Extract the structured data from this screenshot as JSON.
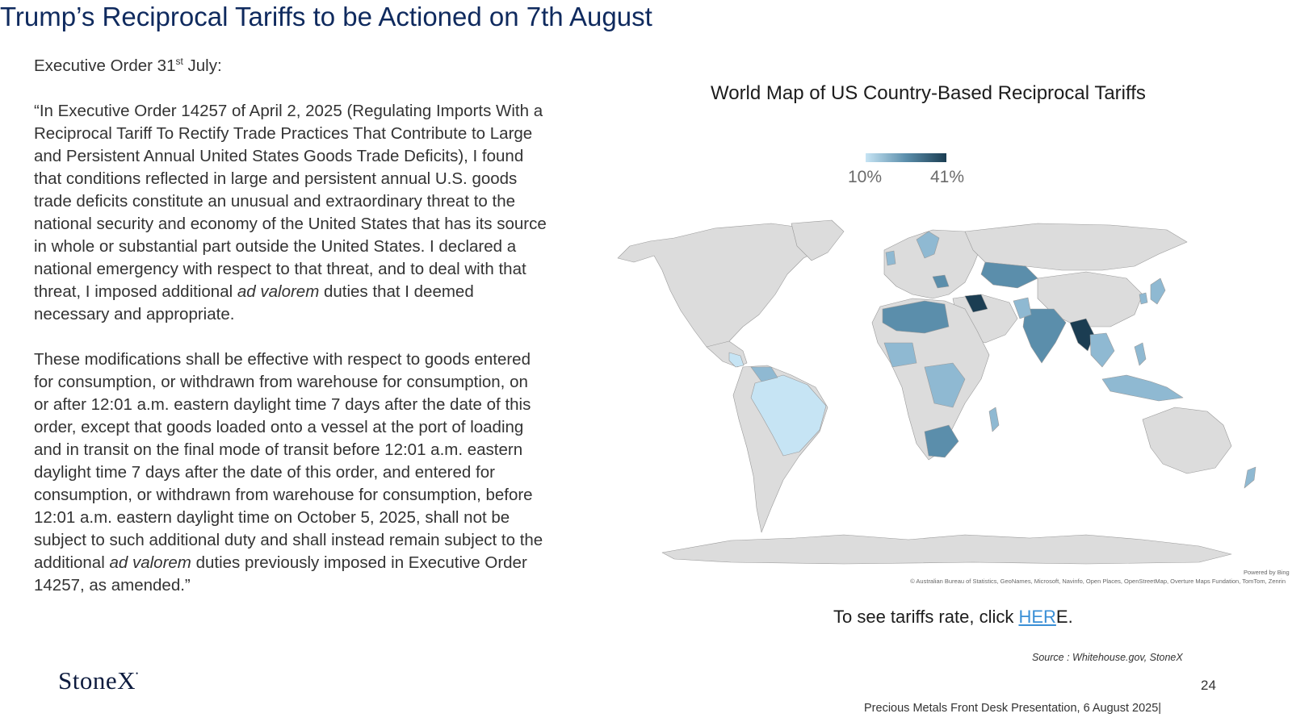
{
  "slide": {
    "title": "Trump’s Reciprocal Tariffs to be Actioned on 7th August",
    "page_number": "24",
    "footer": "Precious Metals Front Desk Presentation, 6 August 2025|",
    "logo_text": "StoneX"
  },
  "left": {
    "heading_prefix": "Executive Order 31",
    "heading_sup": "st",
    "heading_suffix": " July:",
    "para1_a": "“In Executive Order 14257 of April 2, 2025 (Regulating Imports With a Reciprocal Tariff To Rectify Trade Practices That Contribute to Large and Persistent Annual United States Goods Trade Deficits), I found that conditions reflected in large and persistent annual U.S. goods trade deficits constitute an unusual and extraordinary threat to the national security and economy of the United States that has its source in whole or substantial part outside the United States.  I declared a national emergency with respect to that threat, and to deal with that threat, I imposed additional ",
    "para1_italic": "ad valorem",
    "para1_b": " duties that I deemed necessary and appropriate.",
    "para2_a": "These modifications shall be effective with respect to goods entered for consumption, or withdrawn from warehouse for consumption, on or after 12:01 a.m. eastern daylight time 7 days after the date of this order, except that goods loaded onto a vessel at the port of loading and in transit on the final mode of transit before 12:01 a.m. eastern daylight time 7 days after the date of this order, and entered for consumption, or withdrawn from warehouse for consumption, before 12:01 a.m. eastern daylight time on October 5, 2025, shall not be subject to such additional duty and shall instead remain subject to the additional ",
    "para2_italic": "ad valorem",
    "para2_b": " duties previously imposed in Executive Order 14257, as amended.”"
  },
  "map": {
    "title": "World Map of US Country-Based Reciprocal Tariffs",
    "legend_min": "10%",
    "legend_max": "41%",
    "powered_by": "Powered by Bing",
    "attribution": "© Australian Bureau of Statistics, GeoNames, Microsoft, Navinfo, Open Places, OpenStreetMap, Overture Maps Fundation, TomTom, Zenrin",
    "colors": {
      "no_data": "#dcdcdc",
      "low": "#c6e4f4",
      "mid": "#8fb9d2",
      "high": "#5b8eab",
      "max": "#1b3d52",
      "border": "#9a9a9a"
    }
  },
  "cta": {
    "text_before": "To see tariffs rate, click ",
    "link_text": "HER",
    "text_after": "E."
  },
  "source": "Source : Whitehouse.gov, StoneX"
}
